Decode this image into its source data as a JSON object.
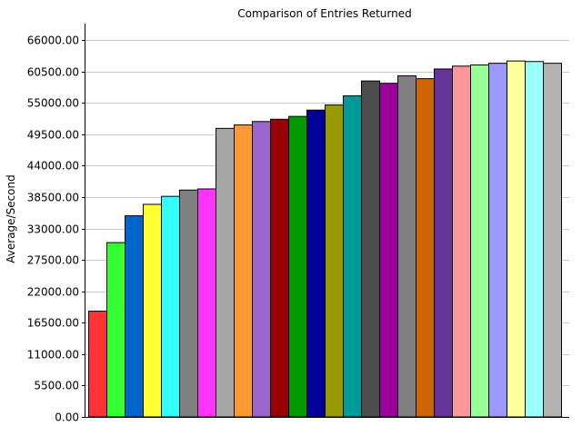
{
  "chart_data": {
    "type": "bar",
    "title": "Comparison of Entries Returned",
    "xlabel": "",
    "ylabel": "Average/Second",
    "ylim": [
      0,
      66000
    ],
    "yticks": [
      "0.00",
      "5500.00",
      "11000.00",
      "16500.00",
      "22000.00",
      "27500.00",
      "33000.00",
      "38500.00",
      "44000.00",
      "49500.00",
      "55000.00",
      "60500.00",
      "66000.00"
    ],
    "grid": true,
    "legend": "none",
    "values": [
      18600,
      30600,
      35300,
      37300,
      38700,
      39800,
      40000,
      50600,
      51200,
      51800,
      52200,
      52700,
      53800,
      54700,
      56300,
      58900,
      58500,
      59800,
      59300,
      61000,
      61500,
      61700,
      62000,
      62400,
      62300,
      62000
    ],
    "colors": [
      "#ff3333",
      "#33ff33",
      "#0066cc",
      "#ffff33",
      "#33ffff",
      "#808080",
      "#ff33ff",
      "#a6a6a6",
      "#ff9933",
      "#9966cc",
      "#990000",
      "#009900",
      "#000099",
      "#999900",
      "#009999",
      "#4d4d4d",
      "#990099",
      "#808080",
      "#cc6600",
      "#663399",
      "#ff9999",
      "#99ff99",
      "#9999ff",
      "#ffff99",
      "#99ffff",
      "#b3b3b3"
    ]
  }
}
